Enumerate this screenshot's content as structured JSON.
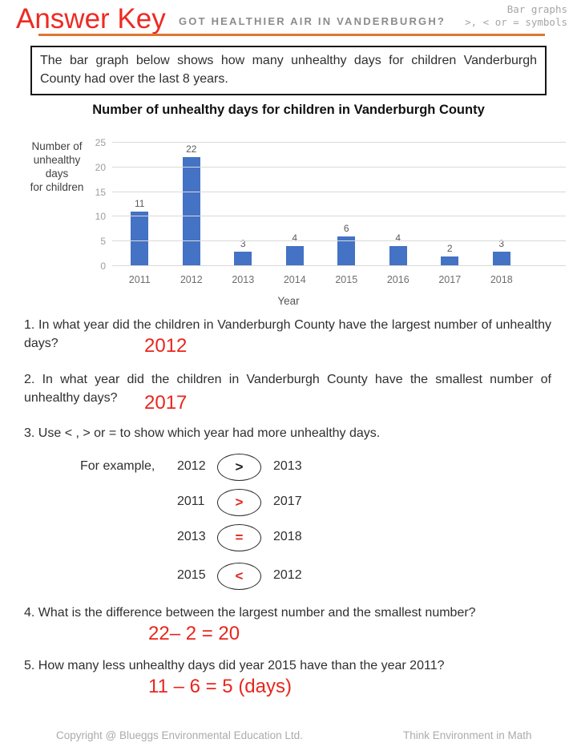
{
  "header": {
    "answer_key": "Answer Key",
    "subtitle": "GOT HEALTHIER AIR IN VANDERBURGH?",
    "corner_line1": "Bar graphs",
    "corner_line2": ">, < or = symbols"
  },
  "intro_box": "The bar graph below shows how many unhealthy days for children Vanderburgh County had over the last 8 years.",
  "chart_data": {
    "type": "bar",
    "title": "Number of unhealthy days for children in Vanderburgh County",
    "categories": [
      "2011",
      "2012",
      "2013",
      "2014",
      "2015",
      "2016",
      "2017",
      "2018"
    ],
    "values": [
      11,
      22,
      3,
      4,
      6,
      4,
      2,
      3
    ],
    "xlabel": "Year",
    "ylabel_lines": [
      "Number of",
      "unhealthy",
      "days",
      "for children"
    ],
    "yticks": [
      0,
      5,
      10,
      15,
      20,
      25
    ],
    "ylim": [
      0,
      25
    ],
    "bar_color": "#4472c4",
    "grid": true,
    "legend": "none"
  },
  "questions": {
    "q1": {
      "text": "1. In what year did the children in Vanderburgh County have the largest number of unhealthy days?",
      "answer": "2012"
    },
    "q2": {
      "text": "2. In what year did the children in Vanderburgh County have the smallest number of unhealthy days?",
      "answer": "2017"
    },
    "q3": {
      "text": "3. Use < , > or = to show which year had more unhealthy days.",
      "example_label": "For example,",
      "rows": [
        {
          "left": "2012",
          "symbol": ">",
          "right": "2013",
          "symbol_color": "#1f1f1f"
        },
        {
          "left": "2011",
          "symbol": ">",
          "right": "2017",
          "symbol_color": "#e3241d"
        },
        {
          "left": "2013",
          "symbol": "=",
          "right": "2018",
          "symbol_color": "#e3241d"
        },
        {
          "left": "2015",
          "symbol": "<",
          "right": "2012",
          "symbol_color": "#e3241d"
        }
      ]
    },
    "q4": {
      "text": "4. What is the difference between the largest number and the smallest number?",
      "answer": "22– 2 = 20"
    },
    "q5": {
      "text": "5. How many less unhealthy days did year 2015 have than the year 2011?",
      "answer": "11 – 6 = 5 (days)"
    }
  },
  "footer": {
    "left": "Copyright @ Blueggs Environmental Education Ltd.",
    "right": "Think Environment in Math"
  },
  "colors": {
    "answer_red": "#e8261d",
    "title_red": "#ed2a23",
    "rule_orange": "#df7630",
    "bar_blue": "#4472c4"
  }
}
